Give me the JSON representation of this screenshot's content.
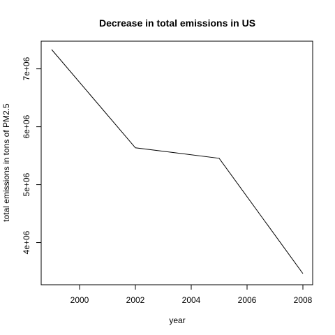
{
  "chart_data": {
    "type": "line",
    "title": "Decrease in total emissions in US",
    "xlabel": "year",
    "ylabel": "total emissions in tons of PM2.5",
    "x": [
      1999,
      2002,
      2005,
      2008
    ],
    "series": [
      {
        "values": [
          7332967,
          5635780,
          5454703,
          3464206
        ]
      }
    ],
    "xlim": [
      1999,
      2008
    ],
    "ylim": [
      3464206,
      7332967
    ],
    "x_ticks": [
      {
        "value": 2000,
        "label": "2000"
      },
      {
        "value": 2002,
        "label": "2002"
      },
      {
        "value": 2004,
        "label": "2004"
      },
      {
        "value": 2006,
        "label": "2006"
      },
      {
        "value": 2008,
        "label": "2008"
      }
    ],
    "y_ticks": [
      {
        "value": 4000000,
        "label": "4e+06"
      },
      {
        "value": 5000000,
        "label": "5e+06"
      },
      {
        "value": 6000000,
        "label": "6e+06"
      },
      {
        "value": 7000000,
        "label": "7e+06"
      }
    ],
    "grid": false,
    "line_color": "#000000"
  }
}
